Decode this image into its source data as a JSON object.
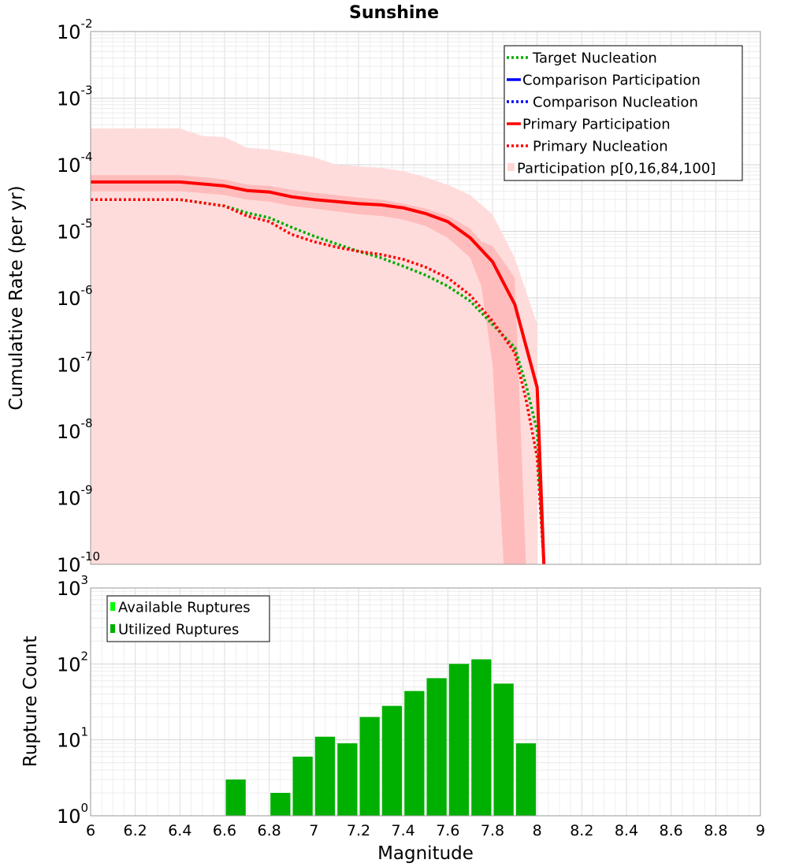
{
  "chart_data": [
    {
      "type": "line",
      "title": "Sunshine",
      "xlabel": "",
      "ylabel": "Cumulative Rate (per yr)",
      "yscale": "log",
      "xlim": [
        6,
        9
      ],
      "ylim_exp": [
        -10,
        -2
      ],
      "ytick_exponents": [
        -10,
        -9,
        -8,
        -7,
        -6,
        -5,
        -4,
        -3,
        -2
      ],
      "grid": true,
      "legend_position": "top-right",
      "legend": [
        {
          "label": "Target Nucleation",
          "style": "dotted",
          "color": "#00aa00"
        },
        {
          "label": "Comparison Participation",
          "style": "solid",
          "color": "#0000ff"
        },
        {
          "label": "Comparison Nucleation",
          "style": "dotted",
          "color": "#0000ff"
        },
        {
          "label": "Primary Participation",
          "style": "solid",
          "color": "#ff0000"
        },
        {
          "label": "Primary Nucleation",
          "style": "dotted",
          "color": "#ff0000"
        },
        {
          "label": "Participation p[0,16,84,100]",
          "style": "band",
          "color": "#ffcccc"
        }
      ],
      "bands": {
        "outer": {
          "name": "Participation p[0,100]",
          "x": [
            6.0,
            6.4,
            6.5,
            6.6,
            6.7,
            6.8,
            6.9,
            7.0,
            7.1,
            7.2,
            7.3,
            7.4,
            7.5,
            7.6,
            7.7,
            7.8,
            7.9,
            8.0
          ],
          "upper": [
            0.00035,
            0.00035,
            0.00027,
            0.00026,
            0.00018,
            0.00017,
            0.00015,
            0.00013,
            0.0001,
            9.5e-05,
            9e-05,
            8e-05,
            6.5e-05,
            5e-05,
            3.5e-05,
            1.8e-05,
            4e-06,
            4e-07
          ],
          "lower": [
            1e-10,
            1e-10,
            1e-10,
            1e-10,
            1e-10,
            1e-10,
            1e-10,
            1e-10,
            1e-10,
            1e-10,
            1e-10,
            1e-10,
            1e-10,
            1e-10,
            1e-10,
            1e-10,
            1e-10,
            1e-10
          ]
        },
        "inner": {
          "name": "Participation p[16,84]",
          "x": [
            6.0,
            6.4,
            6.6,
            6.7,
            6.8,
            6.9,
            7.0,
            7.1,
            7.2,
            7.3,
            7.4,
            7.5,
            7.6,
            7.7,
            7.75,
            7.8,
            7.85,
            7.9,
            7.95
          ],
          "upper": [
            7e-05,
            7e-05,
            6e-05,
            5e-05,
            4.8e-05,
            4.2e-05,
            3.8e-05,
            3.5e-05,
            3.2e-05,
            3e-05,
            2.6e-05,
            2.2e-05,
            1.7e-05,
            1.1e-05,
            7e-06,
            6e-06,
            3.5e-06,
            2e-06,
            1e-10
          ],
          "lower": [
            4e-05,
            4e-05,
            3.5e-05,
            3e-05,
            2.8e-05,
            2.4e-05,
            2.2e-05,
            2e-05,
            1.8e-05,
            1.7e-05,
            1.5e-05,
            1.2e-05,
            8e-06,
            4e-06,
            1.5e-06,
            1e-07,
            1e-10,
            1e-10,
            1e-10
          ]
        }
      },
      "series": [
        {
          "name": "Primary Participation",
          "style": "solid",
          "color": "#ff0000",
          "x": [
            6.0,
            6.4,
            6.6,
            6.7,
            6.8,
            6.9,
            7.0,
            7.1,
            7.2,
            7.3,
            7.4,
            7.5,
            7.6,
            7.7,
            7.8,
            7.9,
            8.0,
            8.03
          ],
          "values": [
            5.5e-05,
            5.5e-05,
            4.8e-05,
            4.1e-05,
            3.9e-05,
            3.3e-05,
            3e-05,
            2.8e-05,
            2.6e-05,
            2.5e-05,
            2.25e-05,
            1.85e-05,
            1.4e-05,
            8e-06,
            3.5e-06,
            8e-07,
            4.5e-08,
            1e-10
          ]
        },
        {
          "name": "Target Nucleation",
          "style": "dotted",
          "color": "#00aa00",
          "x": [
            6.0,
            6.4,
            6.6,
            6.7,
            6.8,
            6.9,
            7.0,
            7.1,
            7.2,
            7.3,
            7.4,
            7.5,
            7.6,
            7.7,
            7.8,
            7.9,
            7.95,
            8.0,
            8.03
          ],
          "values": [
            3e-05,
            3e-05,
            2.4e-05,
            1.9e-05,
            1.6e-05,
            1.15e-05,
            8.5e-06,
            6.5e-06,
            5e-06,
            4e-06,
            3e-06,
            2.2e-06,
            1.5e-06,
            9e-07,
            4e-07,
            1.8e-07,
            5e-08,
            1e-08,
            1e-10
          ]
        },
        {
          "name": "Primary Nucleation",
          "style": "dotted",
          "color": "#ff0000",
          "x": [
            6.0,
            6.4,
            6.6,
            6.7,
            6.8,
            6.9,
            7.0,
            7.1,
            7.2,
            7.3,
            7.4,
            7.5,
            7.6,
            7.7,
            7.8,
            7.9,
            7.95,
            8.0,
            8.03
          ],
          "values": [
            3e-05,
            3e-05,
            2.4e-05,
            1.7e-05,
            1.4e-05,
            9e-06,
            7e-06,
            5.8e-06,
            5e-06,
            4.5e-06,
            3.8e-06,
            2.9e-06,
            2e-06,
            1.1e-06,
            4.5e-07,
            1.5e-07,
            3e-08,
            4e-09,
            1e-10
          ]
        }
      ]
    },
    {
      "type": "bar",
      "xlabel": "Magnitude",
      "ylabel": "Rupture Count",
      "yscale": "log",
      "xlim": [
        6,
        9
      ],
      "ylim_exp": [
        0,
        3
      ],
      "ytick_exponents": [
        0,
        1,
        2,
        3
      ],
      "xticks": [
        "6",
        "6.2",
        "6.4",
        "6.6",
        "6.8",
        "7",
        "7.2",
        "7.4",
        "7.6",
        "7.8",
        "8",
        "8.2",
        "8.4",
        "8.6",
        "8.8",
        "9"
      ],
      "grid": true,
      "legend_position": "top-left",
      "legend": [
        {
          "label": "Available Ruptures",
          "color": "#00ff00"
        },
        {
          "label": "Utilized Ruptures",
          "color": "#00b000"
        }
      ],
      "series": [
        {
          "name": "Utilized Ruptures",
          "color": "#00b000",
          "x": [
            6.65,
            6.85,
            6.95,
            7.05,
            7.15,
            7.25,
            7.35,
            7.45,
            7.55,
            7.65,
            7.75,
            7.85,
            7.95
          ],
          "values": [
            3,
            2,
            6,
            11,
            9,
            20,
            28,
            44,
            65,
            100,
            115,
            55,
            9
          ]
        }
      ]
    }
  ]
}
